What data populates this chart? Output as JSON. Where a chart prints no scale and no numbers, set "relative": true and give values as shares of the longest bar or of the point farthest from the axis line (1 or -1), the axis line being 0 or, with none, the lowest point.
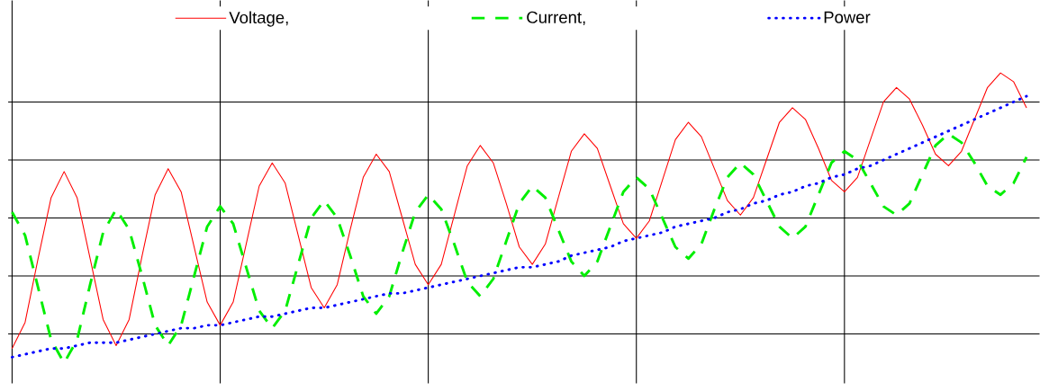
{
  "chart_data": {
    "type": "line",
    "relative": true,
    "legend": "top",
    "grid": true,
    "tick_labels": false,
    "categories": [
      null,
      null,
      null,
      null,
      null,
      null,
      null,
      null,
      null,
      null,
      null,
      null,
      null,
      null,
      null,
      null,
      null,
      null,
      null,
      null,
      null,
      null,
      null,
      null,
      null,
      null,
      null,
      null,
      null,
      null,
      null,
      null,
      null,
      null,
      null,
      null,
      null,
      null,
      null,
      null,
      null,
      null,
      null,
      null,
      null,
      null,
      null,
      null,
      null,
      null,
      null,
      null,
      null,
      null,
      null,
      null,
      null,
      null,
      null,
      null,
      null,
      null,
      null,
      null,
      null,
      null,
      null,
      null,
      null,
      null,
      null,
      null,
      null,
      null,
      null,
      null,
      null,
      null,
      null
    ],
    "series": [
      {
        "name": "Voltage,",
        "color": "#ff0000",
        "line_style": "solid",
        "values": [
          0.05,
          0.14,
          0.36,
          0.57,
          0.66,
          0.57,
          0.36,
          0.15,
          0.06,
          0.15,
          0.37,
          0.58,
          0.67,
          0.59,
          0.4,
          0.21,
          0.13,
          0.21,
          0.41,
          0.61,
          0.69,
          0.62,
          0.44,
          0.26,
          0.19,
          0.27,
          0.46,
          0.64,
          0.72,
          0.66,
          0.5,
          0.34,
          0.27,
          0.34,
          0.51,
          0.68,
          0.75,
          0.69,
          0.55,
          0.4,
          0.34,
          0.41,
          0.57,
          0.73,
          0.79,
          0.74,
          0.61,
          0.48,
          0.43,
          0.49,
          0.63,
          0.77,
          0.83,
          0.78,
          0.67,
          0.56,
          0.51,
          0.57,
          0.7,
          0.83,
          0.88,
          0.84,
          0.74,
          0.63,
          0.59,
          0.64,
          0.77,
          0.9,
          0.95,
          0.91,
          0.82,
          0.72,
          0.68,
          0.73,
          0.84,
          0.95,
          1.0,
          0.97,
          0.88
        ]
      },
      {
        "name": "Current,",
        "color": "#00ee00",
        "line_style": "dashed",
        "values": [
          0.52,
          0.44,
          0.26,
          0.08,
          0.0,
          0.08,
          0.27,
          0.45,
          0.53,
          0.46,
          0.3,
          0.13,
          0.06,
          0.13,
          0.3,
          0.47,
          0.54,
          0.48,
          0.33,
          0.18,
          0.12,
          0.18,
          0.34,
          0.5,
          0.56,
          0.5,
          0.37,
          0.23,
          0.17,
          0.23,
          0.38,
          0.52,
          0.58,
          0.53,
          0.41,
          0.28,
          0.23,
          0.29,
          0.42,
          0.55,
          0.61,
          0.57,
          0.46,
          0.35,
          0.3,
          0.35,
          0.47,
          0.59,
          0.64,
          0.6,
          0.5,
          0.4,
          0.36,
          0.41,
          0.53,
          0.64,
          0.69,
          0.65,
          0.56,
          0.47,
          0.43,
          0.47,
          0.58,
          0.69,
          0.73,
          0.7,
          0.62,
          0.54,
          0.51,
          0.55,
          0.65,
          0.75,
          0.79,
          0.76,
          0.69,
          0.61,
          0.58,
          0.62,
          0.71
        ]
      },
      {
        "name": "Power",
        "color": "#0000ff",
        "line_style": "dotted",
        "values": [
          0.02,
          0.03,
          0.04,
          0.05,
          0.05,
          0.06,
          0.07,
          0.07,
          0.07,
          0.08,
          0.09,
          0.1,
          0.11,
          0.12,
          0.12,
          0.13,
          0.13,
          0.14,
          0.15,
          0.16,
          0.16,
          0.17,
          0.18,
          0.19,
          0.19,
          0.2,
          0.21,
          0.22,
          0.23,
          0.24,
          0.24,
          0.25,
          0.26,
          0.27,
          0.28,
          0.29,
          0.3,
          0.31,
          0.32,
          0.33,
          0.33,
          0.34,
          0.35,
          0.37,
          0.38,
          0.39,
          0.4,
          0.42,
          0.43,
          0.44,
          0.45,
          0.47,
          0.48,
          0.49,
          0.5,
          0.52,
          0.53,
          0.55,
          0.56,
          0.58,
          0.59,
          0.61,
          0.62,
          0.64,
          0.65,
          0.67,
          0.68,
          0.7,
          0.72,
          0.74,
          0.76,
          0.78,
          0.8,
          0.82,
          0.84,
          0.86,
          0.88,
          0.9,
          0.92
        ]
      }
    ]
  }
}
